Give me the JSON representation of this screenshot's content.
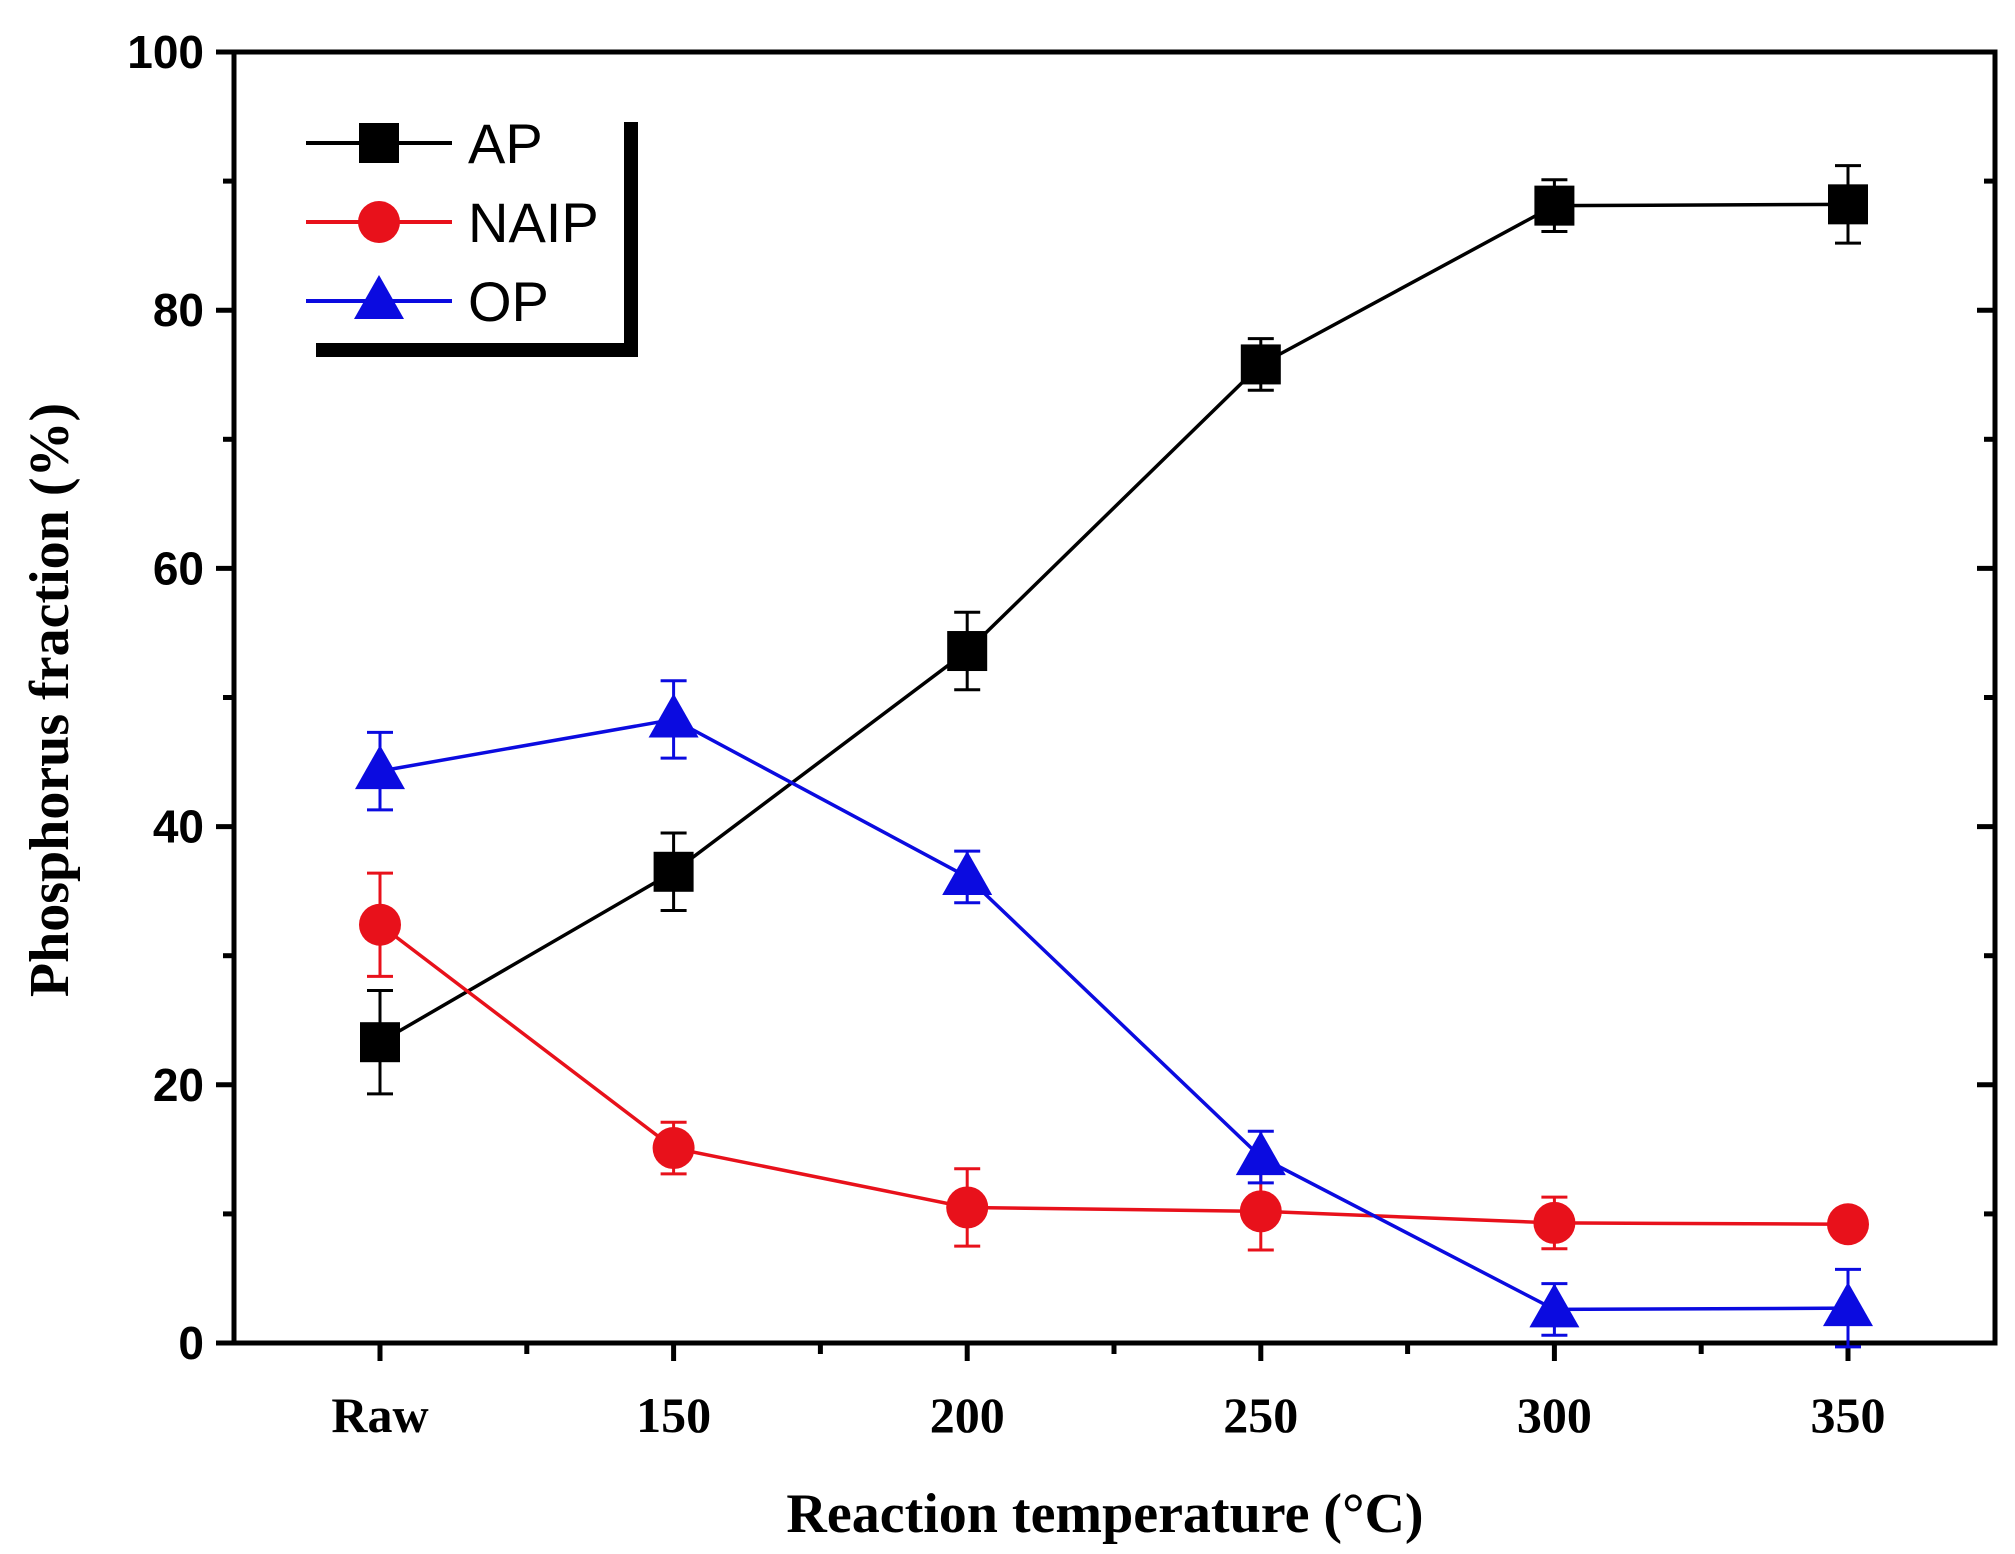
{
  "chart_data": {
    "type": "line",
    "xlabel": "Reaction temperature  (°C)",
    "ylabel": "Phosphorus fraction (%)",
    "categories": [
      "Raw",
      "150",
      "200",
      "250",
      "300",
      "350"
    ],
    "ylim": [
      0,
      100
    ],
    "yticks": [
      "0",
      "20",
      "40",
      "60",
      "80",
      "100"
    ],
    "grid": false,
    "legend_position": "top-left",
    "series": [
      {
        "name": "AP",
        "color": "#000000",
        "marker": "square",
        "values": [
          23.3,
          36.5,
          53.6,
          75.8,
          88.1,
          88.2
        ],
        "errors": [
          4.0,
          3.0,
          3.0,
          2.0,
          2.0,
          3.0
        ]
      },
      {
        "name": "NAIP",
        "color": "#e8111b",
        "marker": "circle",
        "values": [
          32.4,
          15.1,
          10.5,
          10.2,
          9.3,
          9.2
        ],
        "errors": [
          4.0,
          2.0,
          3.0,
          3.0,
          2.0,
          1.0
        ]
      },
      {
        "name": "OP",
        "color": "#0b0be0",
        "marker": "triangle",
        "values": [
          44.3,
          48.3,
          36.1,
          14.4,
          2.6,
          2.7
        ],
        "errors": [
          3.0,
          3.0,
          2.0,
          2.0,
          2.0,
          3.0
        ]
      }
    ]
  }
}
